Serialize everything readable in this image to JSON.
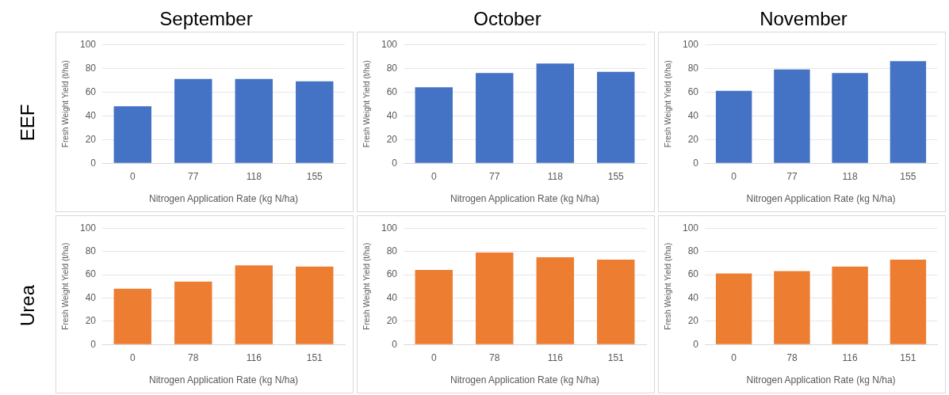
{
  "chart_data": [
    {
      "type": "bar",
      "title": "September",
      "annotations": [
        "EEF"
      ],
      "categories": [
        "0",
        "77",
        "118",
        "155"
      ],
      "values": [
        48,
        71,
        71,
        69
      ],
      "color": "#4472c4",
      "xlabel": "Nitrogen Application Rate (kg N/ha)",
      "ylabel": "Fresh Weight Yield (t/ha)",
      "ylim": [
        0,
        100
      ],
      "yticks": [
        0,
        20,
        40,
        60,
        80,
        100
      ],
      "grid": "y"
    },
    {
      "type": "bar",
      "title": "October",
      "categories": [
        "0",
        "77",
        "118",
        "155"
      ],
      "values": [
        64,
        76,
        84,
        77
      ],
      "color": "#4472c4",
      "xlabel": "Nitrogen Application Rate (kg N/ha)",
      "ylabel": "Fresh Weight Yield (t/ha)",
      "ylim": [
        0,
        100
      ],
      "yticks": [
        0,
        20,
        40,
        60,
        80,
        100
      ],
      "grid": "y"
    },
    {
      "type": "bar",
      "title": "November",
      "categories": [
        "0",
        "77",
        "118",
        "155"
      ],
      "values": [
        61,
        79,
        76,
        86
      ],
      "color": "#4472c4",
      "xlabel": "Nitrogen Application Rate (kg N/ha)",
      "ylabel": "Fresh Weight Yield (t/ha)",
      "ylim": [
        0,
        100
      ],
      "yticks": [
        0,
        20,
        40,
        60,
        80,
        100
      ],
      "grid": "y"
    },
    {
      "type": "bar",
      "annotations": [
        "Urea"
      ],
      "categories": [
        "0",
        "78",
        "116",
        "151"
      ],
      "values": [
        48,
        54,
        68,
        67
      ],
      "color": "#ed7d31",
      "xlabel": "Nitrogen Application Rate (kg N/ha)",
      "ylabel": "Fresh Weight Yield (t/ha)",
      "ylim": [
        0,
        100
      ],
      "yticks": [
        0,
        20,
        40,
        60,
        80,
        100
      ],
      "grid": "y"
    },
    {
      "type": "bar",
      "categories": [
        "0",
        "78",
        "116",
        "151"
      ],
      "values": [
        64,
        79,
        75,
        73
      ],
      "color": "#ed7d31",
      "xlabel": "Nitrogen Application Rate (kg N/ha)",
      "ylabel": "Fresh Weight Yield (t/ha)",
      "ylim": [
        0,
        100
      ],
      "yticks": [
        0,
        20,
        40,
        60,
        80,
        100
      ],
      "grid": "y"
    },
    {
      "type": "bar",
      "categories": [
        "0",
        "78",
        "116",
        "151"
      ],
      "values": [
        61,
        63,
        67,
        73
      ],
      "color": "#ed7d31",
      "xlabel": "Nitrogen Application Rate (kg N/ha)",
      "ylabel": "Fresh Weight Yield (t/ha)",
      "ylim": [
        0,
        100
      ],
      "yticks": [
        0,
        20,
        40,
        60,
        80,
        100
      ],
      "grid": "y"
    }
  ]
}
